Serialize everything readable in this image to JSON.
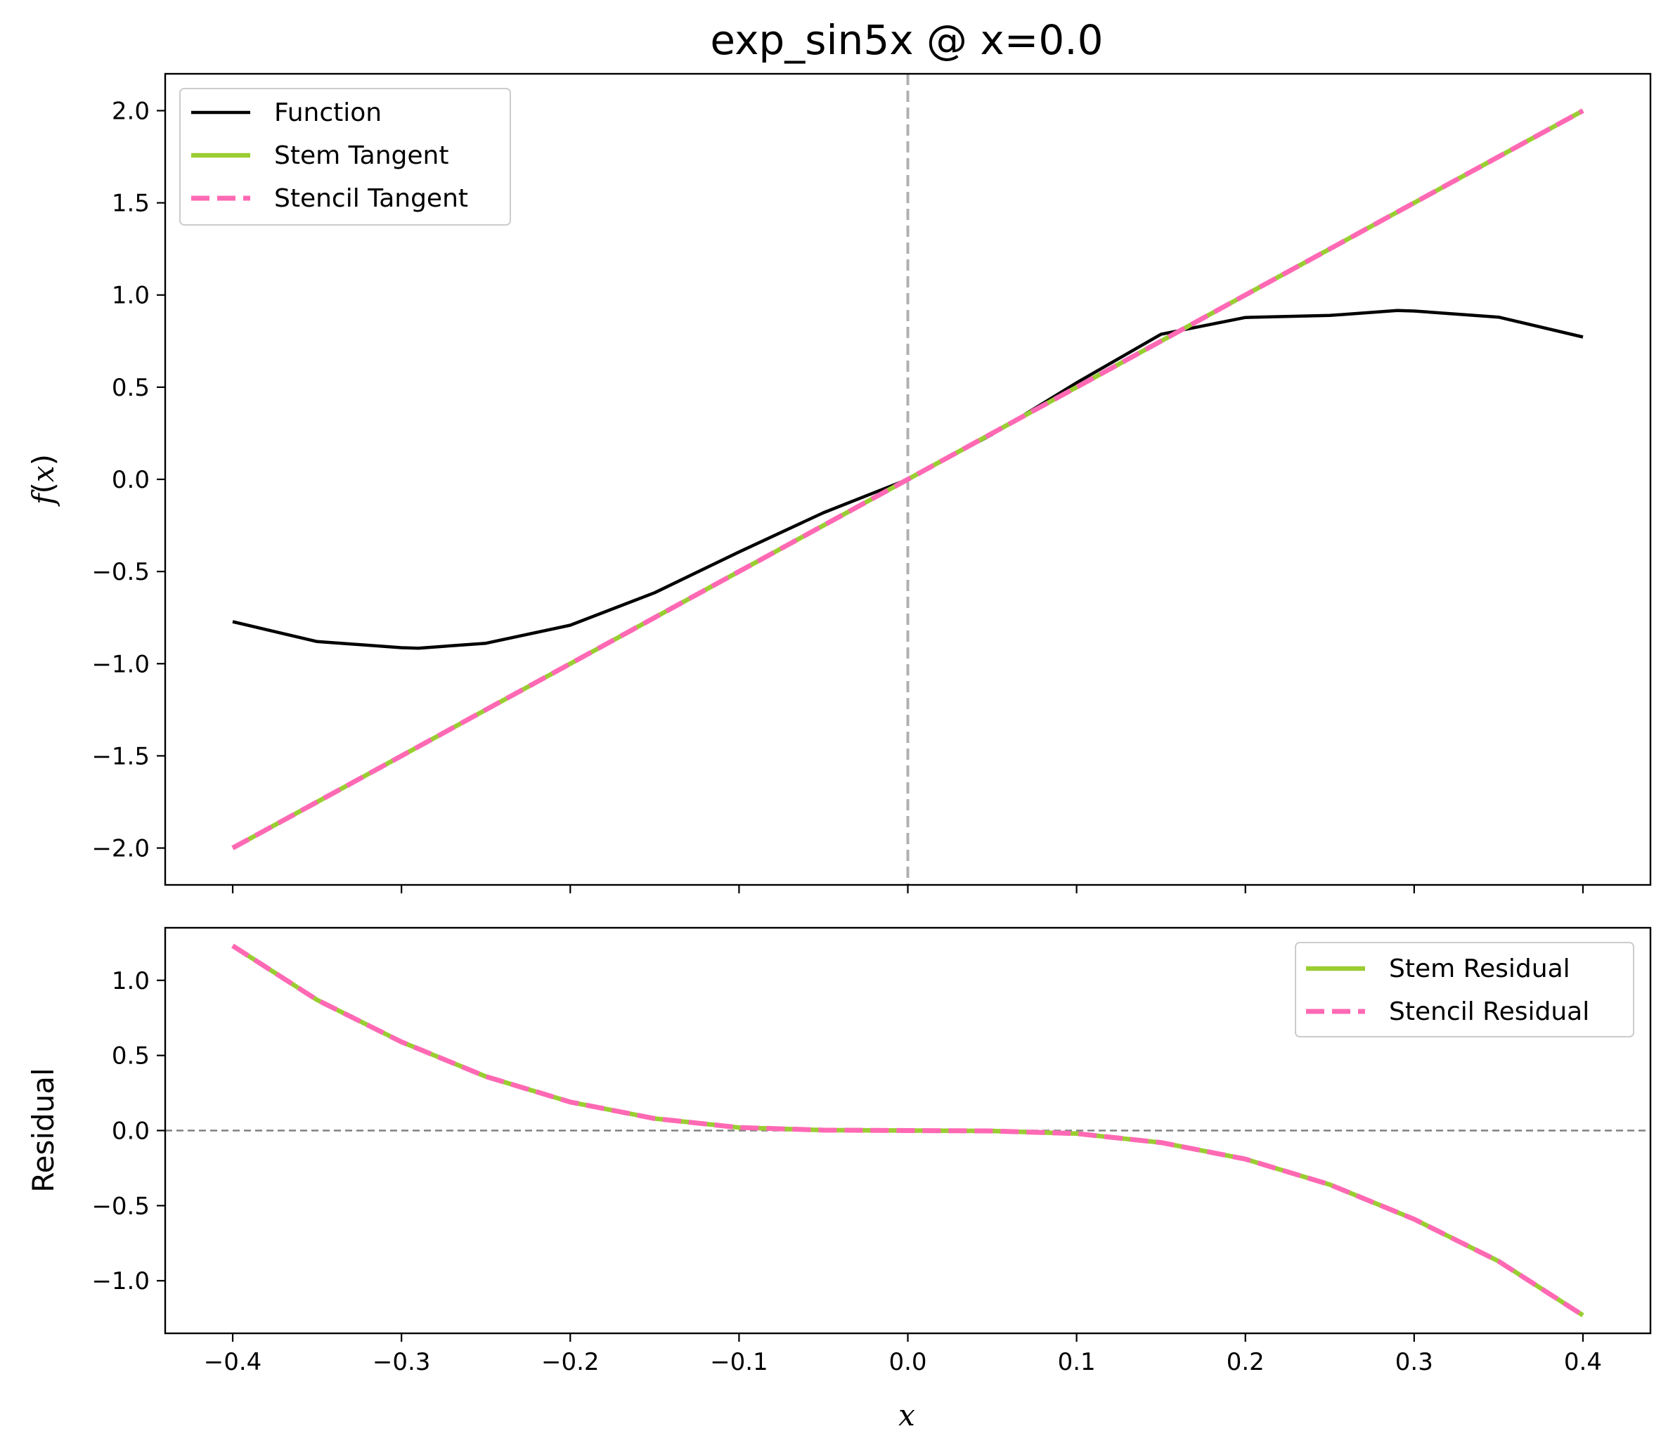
{
  "figure": {
    "title": "exp_sin5x @ x=0.0",
    "background": "#ffffff"
  },
  "colors": {
    "function": "#000000",
    "stem": "#9ACD32",
    "stencil": "#FF69B4",
    "vline": "#b0b0b0",
    "zero_line": "#808080"
  },
  "chart_data": [
    {
      "type": "line",
      "panel": "top",
      "title": "exp_sin5x @ x=0.0",
      "xlabel": "",
      "ylabel": "f(x)",
      "ylabel_parts": {
        "f": "f",
        "open": "(",
        "x": "x",
        "close": ")"
      },
      "xlim": [
        -0.44,
        0.44
      ],
      "ylim": [
        -2.2,
        2.2
      ],
      "x_ticks": [
        -0.4,
        -0.3,
        -0.2,
        -0.1,
        0.0,
        0.1,
        0.2,
        0.3,
        0.4
      ],
      "y_ticks": [
        2.0,
        1.5,
        1.0,
        0.5,
        0.0,
        -0.5,
        -1.0,
        -1.5,
        -2.0
      ],
      "y_tick_labels": [
        "2.0",
        "1.5",
        "1.0",
        "0.5",
        "0.0",
        "−0.5",
        "−1.0",
        "−1.5",
        "−2.0"
      ],
      "grid": false,
      "legend_position": "upper-left",
      "vertical_line_x": 0.0,
      "x": [
        -0.4,
        -0.35,
        -0.3,
        -0.29,
        -0.25,
        -0.2,
        -0.15,
        -0.1,
        -0.05,
        0.0,
        0.05,
        0.1,
        0.15,
        0.2,
        0.25,
        0.29,
        0.3,
        0.35,
        0.4
      ],
      "series": [
        {
          "name": "Function",
          "color": "#000000",
          "style": "solid",
          "y": [
            -0.772,
            -0.88,
            -0.913,
            -0.916,
            -0.889,
            -0.791,
            -0.615,
            -0.394,
            -0.181,
            0.0,
            0.244,
            0.524,
            0.787,
            0.878,
            0.889,
            0.916,
            0.913,
            0.88,
            0.772
          ]
        },
        {
          "name": "Stem Tangent",
          "color": "#9ACD32",
          "style": "solid",
          "y": [
            -2.0,
            -1.75,
            -1.5,
            -1.45,
            -1.25,
            -1.0,
            -0.75,
            -0.5,
            -0.25,
            0.0,
            0.25,
            0.5,
            0.75,
            1.0,
            1.25,
            1.45,
            1.5,
            1.75,
            2.0
          ]
        },
        {
          "name": "Stencil Tangent",
          "color": "#FF69B4",
          "style": "dashed",
          "y": [
            -2.0,
            -1.75,
            -1.5,
            -1.45,
            -1.25,
            -1.0,
            -0.75,
            -0.5,
            -0.25,
            0.0,
            0.25,
            0.5,
            0.75,
            1.0,
            1.25,
            1.45,
            1.5,
            1.75,
            2.0
          ]
        }
      ]
    },
    {
      "type": "line",
      "panel": "bottom",
      "title": "",
      "xlabel": "x",
      "ylabel": "Residual",
      "xlim": [
        -0.44,
        0.44
      ],
      "ylim": [
        -1.35,
        1.35
      ],
      "x_ticks": [
        -0.4,
        -0.3,
        -0.2,
        -0.1,
        0.0,
        0.1,
        0.2,
        0.3,
        0.4
      ],
      "x_tick_labels": [
        "−0.4",
        "−0.3",
        "−0.2",
        "−0.1",
        "0.0",
        "0.1",
        "0.2",
        "0.3",
        "0.4"
      ],
      "y_ticks": [
        1.0,
        0.5,
        0.0,
        -0.5,
        -1.0
      ],
      "y_tick_labels": [
        "1.0",
        "0.5",
        "0.0",
        "−0.5",
        "−1.0"
      ],
      "grid": false,
      "legend_position": "upper-right",
      "zero_line_y": 0.0,
      "x": [
        -0.4,
        -0.35,
        -0.3,
        -0.25,
        -0.2,
        -0.15,
        -0.1,
        -0.05,
        0.0,
        0.05,
        0.1,
        0.15,
        0.2,
        0.25,
        0.3,
        0.35,
        0.4
      ],
      "series": [
        {
          "name": "Stem Residual",
          "color": "#9ACD32",
          "style": "solid",
          "y": [
            1.23,
            0.87,
            0.59,
            0.36,
            0.19,
            0.08,
            0.02,
            0.003,
            0.0,
            -0.003,
            -0.02,
            -0.08,
            -0.19,
            -0.36,
            -0.59,
            -0.87,
            -1.23
          ]
        },
        {
          "name": "Stencil Residual",
          "color": "#FF69B4",
          "style": "dashed",
          "y": [
            1.23,
            0.87,
            0.59,
            0.36,
            0.19,
            0.08,
            0.02,
            0.003,
            0.0,
            -0.003,
            -0.02,
            -0.08,
            -0.19,
            -0.36,
            -0.59,
            -0.87,
            -1.23
          ]
        }
      ]
    }
  ]
}
